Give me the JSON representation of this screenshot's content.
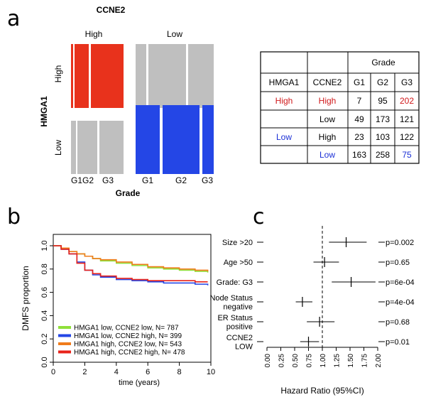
{
  "panels": {
    "a": "a",
    "b": "b",
    "c": "c"
  },
  "mosaic": {
    "col_title": "CCNE2",
    "row_title": "HMGA1",
    "col_labels": [
      "High",
      "Low"
    ],
    "row_labels": [
      "High",
      "Low"
    ],
    "xlabel": "Grade",
    "grade_labels": [
      "G1",
      "G2",
      "G3"
    ],
    "colors": {
      "high_high": "#e8321c",
      "low_low": "#2446e6",
      "other": "#bfbfbf"
    },
    "counts": {
      "hmga1_high_ccne2_high": [
        7,
        95,
        202
      ],
      "hmga1_high_ccne2_low": [
        49,
        173,
        121
      ],
      "hmga1_low_ccne2_high": [
        23,
        103,
        122
      ],
      "hmga1_low_ccne2_low": [
        163,
        258,
        75
      ]
    }
  },
  "table": {
    "group_header": "Grade",
    "headers": [
      "HMGA1",
      "CCNE2",
      "G1",
      "G2",
      "G3"
    ],
    "rows": [
      {
        "hmga1": "High",
        "ccne2": "High",
        "g1": "7",
        "g2": "95",
        "g3": "202"
      },
      {
        "hmga1": "",
        "ccne2": "Low",
        "g1": "49",
        "g2": "173",
        "g3": "121"
      },
      {
        "hmga1": "Low",
        "ccne2": "High",
        "g1": "23",
        "g2": "103",
        "g3": "122"
      },
      {
        "hmga1": "",
        "ccne2": "Low",
        "g1": "163",
        "g2": "258",
        "g3": "75"
      }
    ],
    "red": "#d0181a",
    "blue": "#1a2fd6"
  },
  "chart_data": [
    {
      "type": "line",
      "xlabel": "time (years)",
      "ylabel": "DMFS proportion",
      "xlim": [
        0,
        10
      ],
      "ylim": [
        0,
        1
      ],
      "xticks": [
        "0",
        "2",
        "4",
        "6",
        "8",
        "10"
      ],
      "yticks": [
        "0.0",
        "0.2",
        "0.4",
        "0.6",
        "0.8",
        "1.0"
      ],
      "legend_position": "bottom-left",
      "series": [
        {
          "name": "HMGA1 low, CCNE2 low, N= 787",
          "color": "#8fe03a",
          "x": [
            0,
            0.5,
            1,
            1.5,
            2,
            2.5,
            3,
            4,
            5,
            6,
            7,
            8,
            9,
            9.8
          ],
          "y": [
            1.0,
            0.98,
            0.95,
            0.93,
            0.91,
            0.89,
            0.87,
            0.85,
            0.83,
            0.81,
            0.8,
            0.79,
            0.78,
            0.77
          ]
        },
        {
          "name": "HMGA1 low, CCNE2 high, N= 399",
          "color": "#2446e6",
          "x": [
            0,
            0.5,
            1,
            1.5,
            2,
            2.5,
            3,
            4,
            5,
            6,
            7,
            8,
            9,
            9.8
          ],
          "y": [
            1.0,
            0.97,
            0.93,
            0.86,
            0.79,
            0.75,
            0.73,
            0.71,
            0.7,
            0.69,
            0.68,
            0.68,
            0.67,
            0.66
          ]
        },
        {
          "name": "HMGA1 high, CCNE2 low, N= 543",
          "color": "#f07c1c",
          "x": [
            0,
            0.5,
            1,
            1.5,
            2,
            2.5,
            3,
            4,
            5,
            6,
            7,
            8,
            9,
            9.8
          ],
          "y": [
            1.0,
            0.98,
            0.95,
            0.93,
            0.91,
            0.89,
            0.88,
            0.86,
            0.84,
            0.82,
            0.81,
            0.8,
            0.79,
            0.78
          ]
        },
        {
          "name": "HMGA1 high, CCNE2 high, N= 478",
          "color": "#e8221a",
          "x": [
            0,
            0.5,
            1,
            1.5,
            2,
            2.5,
            3,
            4,
            5,
            6,
            7,
            8,
            9,
            9.8
          ],
          "y": [
            1.0,
            0.97,
            0.93,
            0.85,
            0.79,
            0.76,
            0.74,
            0.72,
            0.71,
            0.7,
            0.7,
            0.7,
            0.69,
            0.69
          ]
        }
      ]
    },
    {
      "type": "forest",
      "xlabel": "Hazard Ratio (95%CI)",
      "xlim": [
        0,
        2
      ],
      "xticks": [
        "0.00",
        "0.25",
        "0.50",
        "0.75",
        "1.00",
        "1.25",
        "1.50",
        "1.75",
        "2.00"
      ],
      "reference_line": 1.0,
      "rows": [
        {
          "label": [
            "Size >20"
          ],
          "hr": 1.43,
          "lo": 1.12,
          "hi": 1.8,
          "p": "p=0.002"
        },
        {
          "label": [
            "Age >50"
          ],
          "hr": 1.04,
          "lo": 0.84,
          "hi": 1.3,
          "p": "p=0.65"
        },
        {
          "label": [
            "Grade: G3"
          ],
          "hr": 1.52,
          "lo": 1.17,
          "hi": 1.96,
          "p": "p=6e-04"
        },
        {
          "label": [
            "Node Status",
            "negative"
          ],
          "hr": 0.64,
          "lo": 0.52,
          "hi": 0.82,
          "p": "p=4e-04"
        },
        {
          "label": [
            "ER Status",
            "positive"
          ],
          "hr": 0.95,
          "lo": 0.72,
          "hi": 1.22,
          "p": "p=0.68"
        },
        {
          "label": [
            "CCNE2",
            "LOW"
          ],
          "hr": 0.75,
          "lo": 0.6,
          "hi": 0.94,
          "p": "p=0.01"
        }
      ]
    }
  ]
}
